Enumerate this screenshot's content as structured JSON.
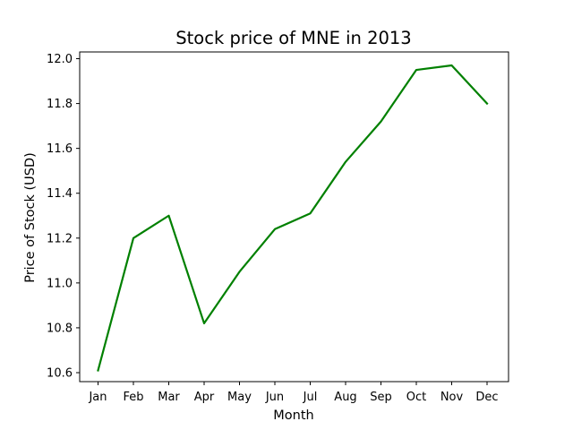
{
  "chart_data": {
    "type": "line",
    "title": "Stock price of MNE in 2013",
    "xlabel": "Month",
    "ylabel": "Price of Stock (USD)",
    "categories": [
      "Jan",
      "Feb",
      "Mar",
      "Apr",
      "May",
      "Jun",
      "Jul",
      "Aug",
      "Sep",
      "Oct",
      "Nov",
      "Dec"
    ],
    "series": [
      {
        "values": [
          10.61,
          11.2,
          11.3,
          10.82,
          11.05,
          11.24,
          11.31,
          11.54,
          11.72,
          11.95,
          11.97,
          11.8
        ],
        "color": "#008000"
      }
    ],
    "ylim": [
      10.56,
      12.03
    ],
    "yticks": [
      "10.6",
      "10.8",
      "11.0",
      "11.2",
      "11.4",
      "11.6",
      "11.8",
      "12.0"
    ],
    "grid": false,
    "legend": "none"
  }
}
